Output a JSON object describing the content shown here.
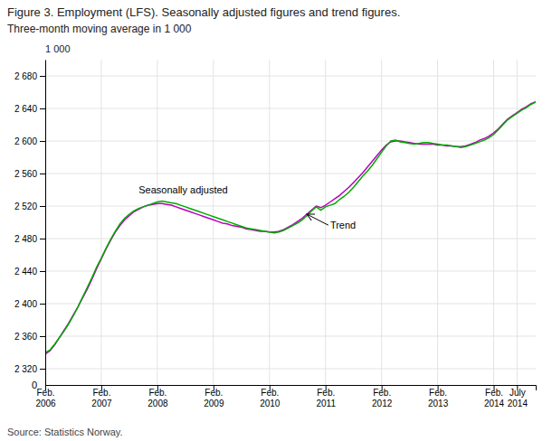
{
  "chart_data": {
    "type": "line",
    "title": "Figure 3. Employment (LFS). Seasonally adjusted figures and trend figures.",
    "subtitle": "Three-month moving average in 1 000",
    "source": "Source: Statistics Norway.",
    "ylabel": "1 000",
    "categories": [
      "Feb.\n2006",
      null,
      null,
      null,
      null,
      null,
      null,
      null,
      null,
      null,
      null,
      null,
      "Feb.\n2007",
      null,
      null,
      null,
      null,
      null,
      null,
      null,
      null,
      null,
      null,
      null,
      "Feb.\n2008",
      null,
      null,
      null,
      null,
      null,
      null,
      null,
      null,
      null,
      null,
      null,
      "Feb.\n2009",
      null,
      null,
      null,
      null,
      null,
      null,
      null,
      null,
      null,
      null,
      null,
      "Feb.\n2010",
      null,
      null,
      null,
      null,
      null,
      null,
      null,
      null,
      null,
      null,
      null,
      "Feb.\n2011",
      null,
      null,
      null,
      null,
      null,
      null,
      null,
      null,
      null,
      null,
      null,
      "Feb.\n2012",
      null,
      null,
      null,
      null,
      null,
      null,
      null,
      null,
      null,
      null,
      null,
      "Feb.\n2013",
      null,
      null,
      null,
      null,
      null,
      null,
      null,
      null,
      null,
      null,
      null,
      "Feb.\n2014",
      null,
      null,
      null,
      null,
      "July\n2014",
      null,
      null,
      null,
      null
    ],
    "series": [
      {
        "color": "#00aa00",
        "values": [
          2340,
          2343,
          2350,
          2358,
          2366,
          2375,
          2385,
          2396,
          2408,
          2420,
          2432,
          2445,
          2456,
          2468,
          2479,
          2489,
          2498,
          2505,
          2510,
          2514,
          2517,
          2519,
          2521,
          2523,
          2525,
          2526,
          2525,
          2524,
          2523,
          2521,
          2519,
          2517,
          2515,
          2513,
          2511,
          2509,
          2507,
          2505,
          2503,
          2501,
          2499,
          2497,
          2495,
          2493,
          2492,
          2491,
          2490,
          2489,
          2488,
          2487,
          2488,
          2490,
          2493,
          2496,
          2499,
          2503,
          2508,
          2514,
          2519,
          2515,
          2519,
          2521,
          2523,
          2528,
          2532,
          2537,
          2543,
          2550,
          2557,
          2563,
          2570,
          2578,
          2586,
          2594,
          2600,
          2601,
          2599,
          2598,
          2597,
          2596,
          2597,
          2598,
          2598,
          2597,
          2596,
          2595,
          2595,
          2594,
          2593,
          2592,
          2593,
          2595,
          2597,
          2599,
          2601,
          2604,
          2608,
          2614,
          2620,
          2626,
          2630,
          2634,
          2638,
          2641,
          2645,
          2648
        ]
      },
      {
        "color": "#bb00bb",
        "values": [
          2338,
          2342,
          2349,
          2358,
          2367,
          2376,
          2386,
          2396,
          2407,
          2418,
          2430,
          2443,
          2455,
          2467,
          2478,
          2488,
          2496,
          2503,
          2508,
          2513,
          2516,
          2519,
          2521,
          2522,
          2523,
          2523,
          2522,
          2521,
          2519,
          2517,
          2515,
          2513,
          2511,
          2509,
          2507,
          2505,
          2503,
          2501,
          2499,
          2498,
          2496,
          2495,
          2494,
          2492,
          2491,
          2490,
          2489,
          2489,
          2488,
          2488,
          2489,
          2491,
          2494,
          2497,
          2501,
          2505,
          2510,
          2515,
          2520,
          2518,
          2521,
          2525,
          2529,
          2533,
          2538,
          2543,
          2549,
          2555,
          2561,
          2568,
          2575,
          2582,
          2589,
          2595,
          2599,
          2600,
          2600,
          2599,
          2598,
          2597,
          2596,
          2596,
          2596,
          2596,
          2595,
          2595,
          2594,
          2594,
          2593,
          2593,
          2594,
          2596,
          2598,
          2601,
          2603,
          2606,
          2610,
          2615,
          2621,
          2627,
          2631,
          2635,
          2639,
          2642,
          2646,
          2648
        ]
      }
    ],
    "ylim": [
      2300,
      2700
    ],
    "yticks": [
      {
        "value": 2320,
        "label": "2 320"
      },
      {
        "value": 2360,
        "label": "2 360"
      },
      {
        "value": 2400,
        "label": "2 400"
      },
      {
        "value": 2440,
        "label": "2 440"
      },
      {
        "value": 2480,
        "label": "2 480"
      },
      {
        "value": 2520,
        "label": "2 520"
      },
      {
        "value": 2560,
        "label": "2 560"
      },
      {
        "value": 2600,
        "label": "2 600"
      },
      {
        "value": 2640,
        "label": "2 640"
      },
      {
        "value": 2680,
        "label": "2 680"
      }
    ],
    "grid": true,
    "annotations": [
      {
        "text": "Seasonally adjusted",
        "x": 20,
        "y": 2536
      },
      {
        "text": "Trend",
        "x": 61,
        "y": 2492,
        "arrow": {
          "x": 56,
          "y": 2510
        }
      },
      {
        "text": "0",
        "x": 0,
        "y": 2300
      }
    ]
  }
}
